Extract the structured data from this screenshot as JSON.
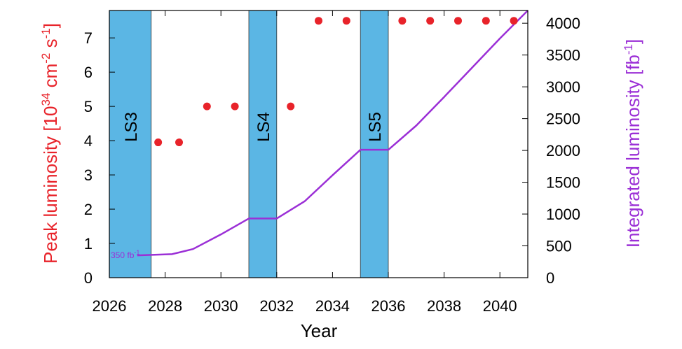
{
  "chart_data": {
    "type": "scatter",
    "xlabel": "Year",
    "ylabel_left": "Peak luminosity [10^34 cm^-2 s^-1]",
    "ylabel_right": "Integrated luminosity [fb^-1]",
    "xlim": [
      2026,
      2041
    ],
    "ylim_left": [
      0,
      7.8
    ],
    "ylim_right": [
      0,
      4200
    ],
    "x_ticks": [
      2026,
      2028,
      2030,
      2032,
      2034,
      2036,
      2038,
      2040
    ],
    "y_left_ticks": [
      0,
      1,
      2,
      3,
      4,
      5,
      6,
      7
    ],
    "y_right_ticks": [
      0,
      500,
      1000,
      1500,
      2000,
      2500,
      3000,
      3500,
      4000
    ],
    "grid": false,
    "shutdowns": [
      {
        "label": "LS3",
        "start": 2026,
        "end": 2027.5
      },
      {
        "label": "LS4",
        "start": 2031,
        "end": 2032
      },
      {
        "label": "LS5",
        "start": 2035,
        "end": 2036
      }
    ],
    "series": [
      {
        "axis": "left",
        "kind": "scatter",
        "color": "#e8232a",
        "x": [
          2027.75,
          2028.5,
          2029.5,
          2030.5,
          2032.5,
          2033.5,
          2034.5,
          2036.5,
          2037.5,
          2038.5,
          2039.5,
          2040.5
        ],
        "values": [
          3.95,
          3.95,
          5.0,
          5.0,
          5.0,
          7.5,
          7.5,
          7.5,
          7.5,
          7.5,
          7.5,
          7.5
        ]
      },
      {
        "axis": "right",
        "kind": "line",
        "color": "#9b2fd6",
        "x": [
          2027,
          2028.25,
          2029,
          2030,
          2031,
          2032,
          2033,
          2034,
          2035,
          2036,
          2037,
          2038,
          2039,
          2040,
          2041
        ],
        "values": [
          350,
          370,
          450,
          680,
          930,
          930,
          1200,
          1610,
          2010,
          2010,
          2390,
          2840,
          3300,
          3760,
          4200
        ]
      }
    ],
    "annotations": [
      {
        "text": "350 fb",
        "sup": "-1",
        "x": 2026.0,
        "value": 350
      }
    ]
  },
  "colors": {
    "shutdown_fill": "#5bb6e4",
    "left_axis": "#e8232a",
    "right_axis": "#9b2fd6"
  }
}
